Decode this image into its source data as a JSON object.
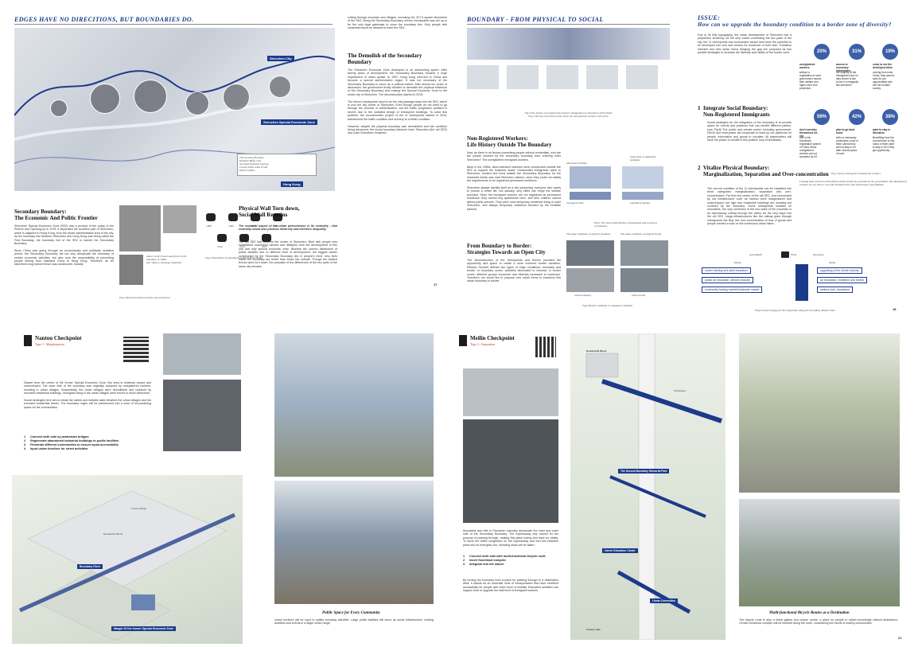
{
  "spread1": {
    "left_page": {
      "heading": "EDGES HAVE NO DIRECITIONS, BUT BOUNDARIES DO.",
      "map_labels": {
        "city": "Shenzhen City",
        "sez": "Shenzhen Special Economic Zone",
        "hk": "Hong Kong"
      },
      "legend": [
        "The Secondary Boundary",
        "Boundary Buffer Zone",
        "Secondary Boundary Gateway",
        "Concept buffer radius 0.5 km",
        "Public Facilities"
      ],
      "section1_title": "Secondary Boundary:\nThe Economic And Politic Frontier",
      "section1_body": "Shenzhen Special Economic Zone (SEZ) was a product of the policy of the Reform and Opening-up in 1978. It separated the southern part of Shenzhen, which is adjacent to Hong Kong, from the whole administrative area of the city. As the boundary line between Shenzhen and Hong Kong was being called the First Boundary, the boundary line of the SEZ is named the Secondary Boundary.\n\nSince China was going through an economically and politically sensitive period, the Secondary Boundary did not only demarcate the boundary of certain economic activities, but also took the responsibility of preventing people fleeing from mainland China to Hong Kong. Therefore, an 84 kilometers long barbed fence was constructed, brutally",
      "fig1_caption": "Fig.1 Historical photo of sentry box and fences",
      "photo_caption": "above: sentry boxes and fences of the boundary in 1980s\nleft: officers checking credential",
      "fig2_caption": "Fig.2 Dissolution of boundaries in Pearl River Delta",
      "years": [
        "1980",
        "1990",
        "2000",
        "2008",
        "2010",
        "2014",
        "2017"
      ],
      "col2_body_top": "cutting through mountain and villages, enclosing the 327.5 square kilometers of the SEZ. Along the Secondary Boundary, eleven checkpoints was set up to be the only legal gateways to cross the boundary line. Only people with credential would be allowed to enter the SEZ.",
      "section2_title": "The Demolish of the Secondary Boundary",
      "section2_body": "The Shenzhen Economic Zone developed in an astonishing speed. After twenty years of development, the Secondary Boundary became a huge impediment of urban sprawl. In 1997, Hong Kong returned to China and became a special administrative region. It was not necessary of the Secondary Boundary to serve as a political barrier. After almost ten years of discussion, the government finally decided to demolish the physical existence of the Secondary Boundary and enlarge the Special Economic Zone to the whole city of Shenzhen. The deconstruction started in 2015.\n\nThe eleven checkpoints used to be the only passage ways into the SEZ, which is now the city center of Shenzhen. Even though people do not need to go through the process of authentication, but the traffic congestion problem is severe due to the outdated design of checkpoint buildings. To solve this problem, the reconstruction project of the 11 checkpoints started in 2016, transformed the traffic condition and scenery to a better condition.\n\nHowever, despite the physical boundary was demolished and site condition being advanced, the social boundary between inner Shenzhen (the old SEZ) and outer Shenzhen remained.",
      "section3_title": "Physical Wall Torn down,\nSocial Wall Remains",
      "section3_quote": "The essential aspect of the urban phenomenon is its centrality ...that centrality would also produce hierarchy and therefore inequality.",
      "section3_body": "The old SEZ has become the center of Shenzhen, filled with people who established successful careers and lifestyles from the development of this one and only special economic zone. Besides the uneven distribution of public facilities due to different level of development, the biggest barrier constructed by the Secondary Boundary lies in people's mind: who lives inside the boundary are better than those live outside. Though the barbed fences were torn down, the prejudice of the differences of the two parts of the same city remains.",
      "page_number": "17"
    },
    "right_page": {
      "heading": "BOUNDARY - FROM PHYSICAL TO SOCIAL",
      "fig3_caption": "Fig.3 The history of unregistered workers' immigration to Shenzhen (1979-2018)\nFig.4 The top 5 provinces from which the unregistered workers come from",
      "section4_title": "Non-Registered Workers:\nLife History Outside The Boundary",
      "section4_body": "Now, as there is no fences preventing people without credentials, who are the people blocked by the secondary boundary from entering inner Shenzhen? The unregistered immigrant workers.\n\nBack in the 1980s, labor-intensive factories were constructed outside the SEZ to support the business inside. Uneducated immigrants came to Shenzhen, worked and lived outside the Secondary Boundary. As the industries inside was mall Shenzhen citizens, since they could not satisfy the requirements to be registered permanent residence.\n\nShenzhen always identify itself as a city welcoming everyone who wants to pursue a better life, but actually, only elites can enjoy the welfare provided. Since the immigrant workers are not registered as permanent residence, they cannot buy apartments here, and their children cannot attend public schools. They were once temporary residence living in outer Shenzhen, and always temporary residence blocked by the invisible barriers.",
      "section5_title": "From Boundary to Border:\nStrategies Towards an Open City",
      "section5_body": "The deconstruction of the checkpoints and fences provided the opportunity and space to create a more coherent border condition. Richard Sennett defined two types of edge conditions: boundary and border. In boundary zones, activities decreased to minimal; in border zones, different groups encounter and diversity increased to maximum. Therefore, we would like to propose new urban forms to transform this urban boundary to border.",
      "map_labels": [
        "education facilities",
        "proportion of registered residents",
        "average income",
        "population density"
      ],
      "fig5_caption": "Fig.5 The uneven distribution of population and resources in Shenzhen",
      "edge_labels": [
        "The edge condition: ecological boundary",
        "The edge condition: ecological border",
        "urban boundary",
        "urban border"
      ],
      "fig6_caption": "Fig.6 Border condition vs. boundary condition",
      "issue_heading": "ISSUE:",
      "issue_question": "How can we upgrade the boundary condition to a border zone of diversity?",
      "issue_body": "Due to its hilly topography, the urban development of Shenzhen has a polycentric tendency. As the only routes connecting the two parts of the city, the 11 checkpoints and surrounded vacant land have the potential to be developed into new sub centers for residence of both side. Transition inserted and new urban forms bridging the gap are proposed as two parallel strategies to increase the diversity and vitality of the border zone.",
      "strategy1_title": "1  Integrate Social Boundary:\n    Non-Registered Immigrants",
      "strategy1_body": "Social strategies for the integration of the boundary is to provide space for events and practices that can benefit different parties. (see Fig.8) The public and private sector, including government, NGOs and enterprises will cooperate to build up the platforms for people, information and goods to circulate. All stakeholders will have the power to benefit in this positive loop of feedbacks.",
      "strategy2_title": "2  Vitalize Physical Boundary:\n    Marginalization, Separation and Over-concentration",
      "strategy2_body": "The current condition of the 11 checkpoints can be classified into three categories: marginalization, separation and over-concentration. Far from the center of the old SEZ, and surrounded by old infrastructure such as Nantou were marginalized and undeveloped, but high rise residential buildings are invading but confined by the boundary. Some checkpoints situated on mountains, the only connector of the two sides of the mountain is an expressway cutting through the valley. As the only ways into the old SEZ, mega infrastructures like the railway goes through checkpoints like Buji, the over-concentration of flow of goods and people created a scar on the continuous urban fabric.",
      "stats": [
        {
          "value": "20%",
          "title": "unregistered workers:",
          "text": "without a registration to local government means their welfare and rights have zero protection."
        },
        {
          "value": "31%",
          "title": "access to necessary information:",
          "text": "the majority of the immigrants have no idea what it is like to live in a megacity like shenzhen"
        },
        {
          "value": "19%",
          "title": "come to see the developed cities",
          "text": "coming from inner China, they want to seek for job opportunities and see the modern society."
        },
        {
          "value": "59%",
          "title": "don't consider themselves SZ-ese",
          "text": "due to the household registration system of China, these unregistered workers are not accepted by SZ"
        },
        {
          "value": "42%",
          "title": "plan to go back home",
          "text": "with no necessary protections, most of them cannot thus will not stay in SZ after several years of work"
        },
        {
          "value": "38%",
          "title": "want to stay in Shenzhen",
          "text": "Benefiting from the convenience of city, many of them want to stay in SZ if they get opportunity"
        }
      ],
      "fig7_caption": "Fig.7 Survey among the unregistered workers",
      "sidenote": "Lacking basic services and facilities which should be provided by the government, the unregistered workers are not able to cross the boundary line and obtain better opportunities",
      "diagram_labels": {
        "government": "government",
        "ngo": "NGO",
        "enterprise": "enterprise",
        "outside": "outside",
        "inside": "inside",
        "sbz": "Secondary Border Zone"
      },
      "diagram_left": [
        "career training and adult education",
        "public art education, artwork industry",
        "community trading market/wholesale market"
      ],
      "diagram_right": [
        "upgrading of the whole industry",
        "art education, exhibition and events",
        "makers club, incubators"
      ],
      "fig8_caption": "Fig.8 Social strategy for the integration along the Secondary Border Zone",
      "page_number": "18"
    }
  },
  "spread2": {
    "left_page": {
      "title": "Nantou Checkpoint",
      "type": "Type 1 : Marginization",
      "body": "Distant from the center of the former Special Economic Zone, this area is relatively vacant and undeveloped. The outer side of the boundary was originally occupied by unregistered workers, resulting in urban villages. Sequentially, the urban villages were demolished and replaced by enclosed residential buildings. Immigrant living in the urban villages were forced to move elsewhere.\n\nSocial strategies here aim to break the visible and invisible walls between the urban villages and the enclosed residential blocks. The boundary region will be transformed into a zone of encountering space for the communities.",
      "strategies": [
        "Connect both side by pedestrian bridges",
        "Regenerate abandoned industrial buildings to public facilities",
        "Penetrate different communities to ensure equal accessibility",
        "Input urban furniture for street activities"
      ],
      "axo_labels": [
        "Urban Village",
        "Residential Block",
        "Boundary River",
        "Margin Of the former Special Economic Zone"
      ],
      "render_caption": "Public Space for Every Community",
      "render_body": "Urban furniture will be input to satisfy everyday activities. Large public facilities will serve as social infrastructure, hosting activities and events in a larger urban range."
    },
    "right_page": {
      "title": "Meilin Checkpoint",
      "type": "Type 2 : Separation",
      "body": "Mountains and hills in Shenzhen naturally demarcate the inner and outer side of the Secondary Boundary. The expressway only served for the purpose of passing through, making this place boring and have no vitality. To solve the traffic congestion on the expressway and turn this beautiful place into an energetic one, following steps will be taken:",
      "strategies": [
        "Connect both side with multi-functional bicycle route",
        "Insert functional complex",
        "Integrate into the nature"
      ],
      "body2": "By turning the boundary from a place for passing through to a destination itself, it stands as an essential node of transportation that have excellent accessibility for people with lower level of mobility. Education activities can happen here to upgrade the skill level of immigrant workers.",
      "plan_labels": [
        "Residential Block",
        "Workshops",
        "The Second Boundary Memorial Park",
        "Career Education Center",
        "Linear Connection",
        "Factory Site"
      ],
      "render_caption": "Multi-functional Bicycle Routes as a Destination",
      "render_body": "The bicycle route is also a linear gallery and culture centre, a place for people to obtain knowledge without distinctions. Certain functional complex will be inserted along the route, considering the needs of nearby communities.",
      "page_number": "21"
    }
  }
}
